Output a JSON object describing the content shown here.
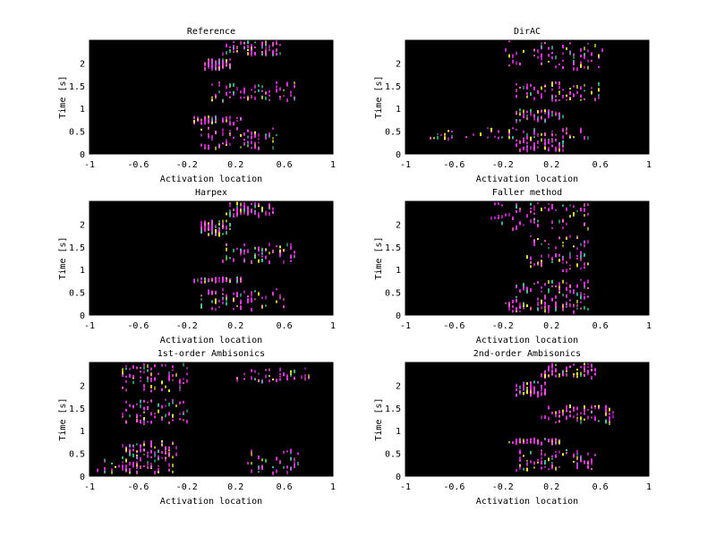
{
  "chart_data": [
    {
      "type": "heatmap",
      "title": "Reference",
      "xlabel": "Activation location",
      "ylabel": "Time [s]",
      "xlim": [
        -1,
        1
      ],
      "ylim": [
        0,
        2.5
      ],
      "xticks": [
        "-1",
        "-0.6",
        "-0.2",
        "0.2",
        "0.6",
        "1"
      ],
      "yticks": [
        "0",
        "0.5",
        "1",
        "1.5",
        "2"
      ],
      "background": "#000000",
      "colors": [
        "#ff33ff",
        "#ffff33",
        "#33cc99",
        "#ff66cc"
      ],
      "clusters": [
        {
          "x": [
            -0.05,
            0.15
          ],
          "y": [
            1.9,
            2.1
          ],
          "intensity": 0.9
        },
        {
          "x": [
            0.1,
            0.55
          ],
          "y": [
            2.2,
            2.5
          ],
          "intensity": 0.85
        },
        {
          "x": [
            0.0,
            0.7
          ],
          "y": [
            1.2,
            1.6
          ],
          "intensity": 0.8
        },
        {
          "x": [
            -0.15,
            0.25
          ],
          "y": [
            0.7,
            0.85
          ],
          "intensity": 0.6
        },
        {
          "x": [
            -0.1,
            0.55
          ],
          "y": [
            0.15,
            0.6
          ],
          "intensity": 0.85
        }
      ]
    },
    {
      "type": "heatmap",
      "title": "DirAC",
      "xlabel": "Activation location",
      "ylabel": "Time [s]",
      "xlim": [
        -1,
        1
      ],
      "ylim": [
        0,
        2.5
      ],
      "xticks": [
        "-1",
        "-0.6",
        "-0.2",
        "0.2",
        "0.6",
        "1"
      ],
      "yticks": [
        "0",
        "0.5",
        "1",
        "1.5",
        "2"
      ],
      "background": "#000000",
      "colors": [
        "#ff33ff",
        "#ffff33",
        "#33cc99",
        "#ff66cc"
      ],
      "clusters": [
        {
          "x": [
            -0.2,
            0.6
          ],
          "y": [
            1.9,
            2.5
          ],
          "intensity": 0.8
        },
        {
          "x": [
            -0.1,
            0.6
          ],
          "y": [
            1.2,
            1.6
          ],
          "intensity": 0.75
        },
        {
          "x": [
            -0.1,
            0.3
          ],
          "y": [
            0.75,
            1.0
          ],
          "intensity": 0.5
        },
        {
          "x": [
            -0.8,
            0.5
          ],
          "y": [
            0.35,
            0.6
          ],
          "intensity": 0.7
        },
        {
          "x": [
            -0.1,
            0.3
          ],
          "y": [
            0.1,
            0.35
          ],
          "intensity": 0.6
        }
      ]
    },
    {
      "type": "heatmap",
      "title": "Harpex",
      "xlabel": "Activation location",
      "ylabel": "Time [s]",
      "xlim": [
        -1,
        1
      ],
      "ylim": [
        0,
        2.5
      ],
      "xticks": [
        "-1",
        "-0.6",
        "-0.2",
        "0.2",
        "0.6",
        "1"
      ],
      "yticks": [
        "0",
        "0.5",
        "1",
        "1.5",
        "2"
      ],
      "background": "#000000",
      "colors": [
        "#ff33ff",
        "#ffff33",
        "#33cc99",
        "#ff66cc"
      ],
      "clusters": [
        {
          "x": [
            -0.1,
            0.15
          ],
          "y": [
            1.8,
            2.1
          ],
          "intensity": 0.9
        },
        {
          "x": [
            0.1,
            0.5
          ],
          "y": [
            2.2,
            2.5
          ],
          "intensity": 0.85
        },
        {
          "x": [
            0.1,
            0.7
          ],
          "y": [
            1.2,
            1.6
          ],
          "intensity": 0.8
        },
        {
          "x": [
            -0.15,
            0.25
          ],
          "y": [
            0.75,
            0.85
          ],
          "intensity": 0.6
        },
        {
          "x": [
            -0.1,
            0.6
          ],
          "y": [
            0.15,
            0.6
          ],
          "intensity": 0.85
        }
      ]
    },
    {
      "type": "heatmap",
      "title": "Faller method",
      "xlabel": "Activation location",
      "ylabel": "Time [s]",
      "xlim": [
        -1,
        1
      ],
      "ylim": [
        0,
        2.5
      ],
      "xticks": [
        "-1",
        "-0.6",
        "-0.2",
        "0.2",
        "0.6",
        "1"
      ],
      "yticks": [
        "0",
        "0.5",
        "1",
        "1.5",
        "2"
      ],
      "background": "#000000",
      "colors": [
        "#ff33ff",
        "#ffff33",
        "#33cc99",
        "#ff66cc"
      ],
      "clusters": [
        {
          "x": [
            -0.3,
            0.5
          ],
          "y": [
            1.9,
            2.5
          ],
          "intensity": 0.8
        },
        {
          "x": [
            0.0,
            0.5
          ],
          "y": [
            1.0,
            1.8
          ],
          "intensity": 0.8
        },
        {
          "x": [
            -0.1,
            0.5
          ],
          "y": [
            0.35,
            0.8
          ],
          "intensity": 0.65
        },
        {
          "x": [
            -0.2,
            0.5
          ],
          "y": [
            0.1,
            0.35
          ],
          "intensity": 0.75
        }
      ]
    },
    {
      "type": "heatmap",
      "title": "1st-order Ambisonics",
      "xlabel": "Activation location",
      "ylabel": "Time [s]",
      "xlim": [
        -1,
        1
      ],
      "ylim": [
        0,
        2.5
      ],
      "xticks": [
        "-1",
        "-0.6",
        "-0.2",
        "0.2",
        "0.6",
        "1"
      ],
      "yticks": [
        "0",
        "0.5",
        "1",
        "1.5",
        "2"
      ],
      "background": "#000000",
      "colors": [
        "#ff33ff",
        "#ffff33",
        "#33cc99",
        "#ff66cc"
      ],
      "clusters": [
        {
          "x": [
            -0.75,
            -0.2
          ],
          "y": [
            1.9,
            2.5
          ],
          "intensity": 0.85
        },
        {
          "x": [
            0.2,
            0.8
          ],
          "y": [
            2.1,
            2.4
          ],
          "intensity": 0.4
        },
        {
          "x": [
            -0.75,
            -0.2
          ],
          "y": [
            1.2,
            1.7
          ],
          "intensity": 0.8
        },
        {
          "x": [
            -0.75,
            -0.3
          ],
          "y": [
            0.5,
            0.8
          ],
          "intensity": 0.6
        },
        {
          "x": [
            -0.95,
            -0.3
          ],
          "y": [
            0.1,
            0.5
          ],
          "intensity": 0.85
        },
        {
          "x": [
            0.3,
            0.7
          ],
          "y": [
            0.1,
            0.6
          ],
          "intensity": 0.3
        }
      ]
    },
    {
      "type": "heatmap",
      "title": "2nd-order Ambisonics",
      "xlabel": "Activation location",
      "ylabel": "Time [s]",
      "xlim": [
        -1,
        1
      ],
      "ylim": [
        0,
        2.5
      ],
      "xticks": [
        "-1",
        "-0.6",
        "-0.2",
        "0.2",
        "0.6",
        "1"
      ],
      "yticks": [
        "0",
        "0.5",
        "1",
        "1.5",
        "2"
      ],
      "background": "#000000",
      "colors": [
        "#ff33ff",
        "#ffff33",
        "#33cc99",
        "#ff66cc"
      ],
      "clusters": [
        {
          "x": [
            -0.1,
            0.15
          ],
          "y": [
            1.8,
            2.1
          ],
          "intensity": 0.9
        },
        {
          "x": [
            0.1,
            0.55
          ],
          "y": [
            2.2,
            2.5
          ],
          "intensity": 0.85
        },
        {
          "x": [
            0.1,
            0.7
          ],
          "y": [
            1.2,
            1.6
          ],
          "intensity": 0.8
        },
        {
          "x": [
            -0.15,
            0.25
          ],
          "y": [
            0.75,
            0.85
          ],
          "intensity": 0.6
        },
        {
          "x": [
            -0.1,
            0.55
          ],
          "y": [
            0.15,
            0.6
          ],
          "intensity": 0.85
        }
      ]
    }
  ]
}
